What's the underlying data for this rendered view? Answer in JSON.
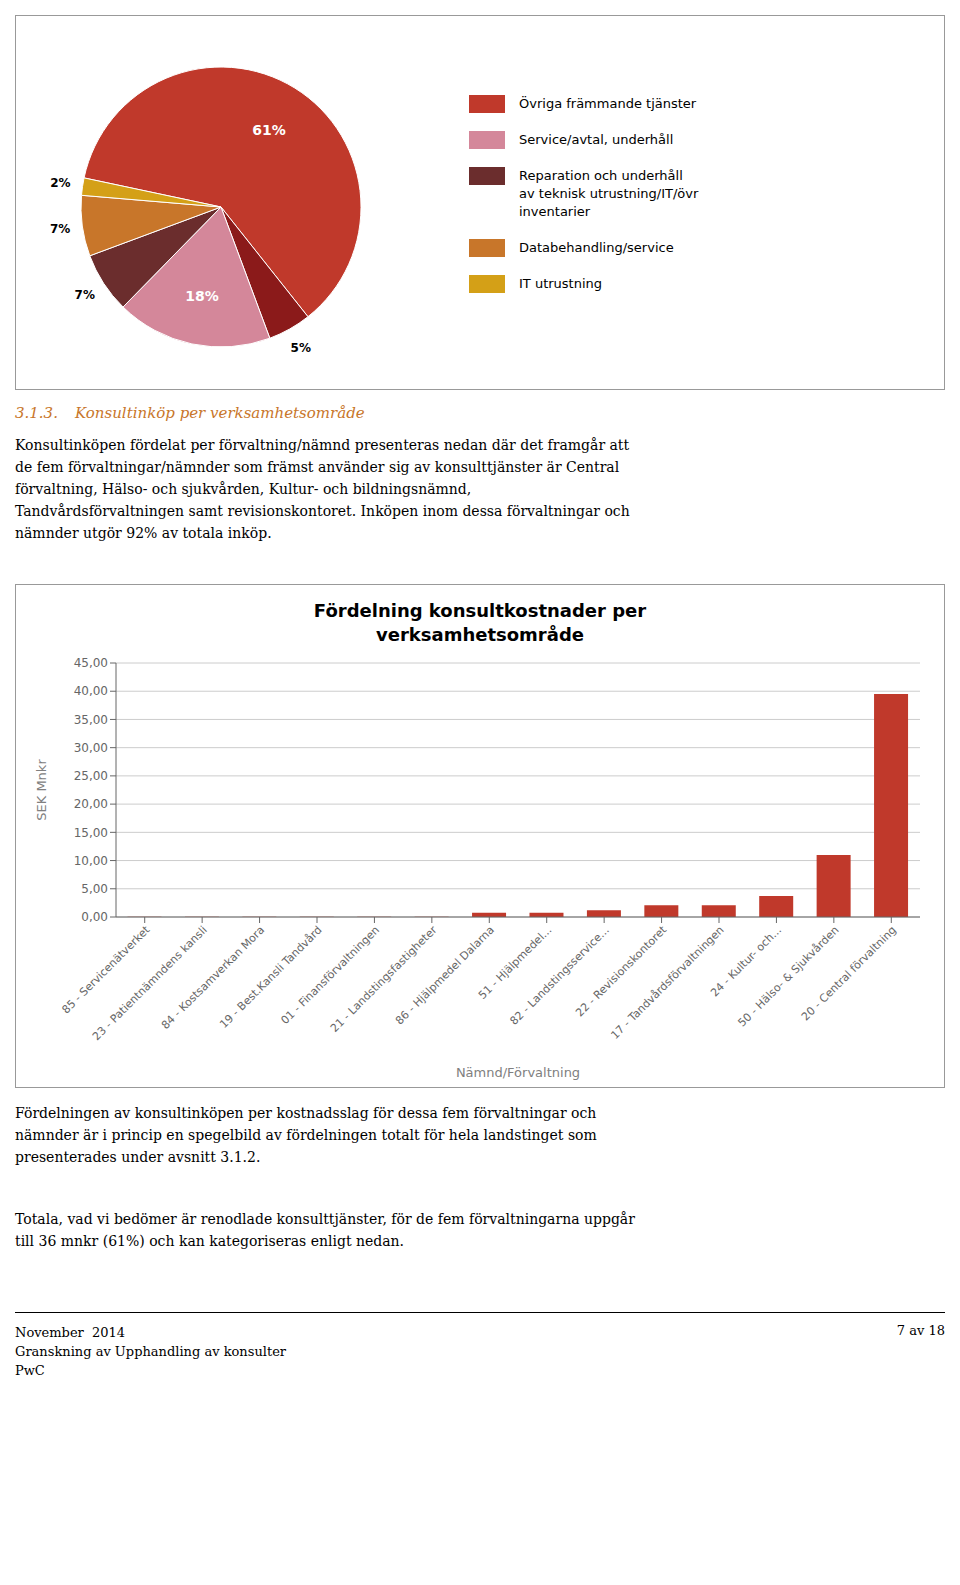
{
  "chart_data": [
    {
      "type": "pie",
      "values": [
        61,
        5,
        18,
        7,
        7,
        2
      ],
      "value_labels": [
        "61%",
        "5%",
        "18%",
        "7%",
        "7%",
        "2%"
      ],
      "colors": [
        "#C0392B",
        "#8B1A1A",
        "#D4879A",
        "#6B2D2D",
        "#C8762A",
        "#D4A017"
      ],
      "categories": [
        "Övriga främmande tjänster",
        null,
        "Service/avtal, underhåll",
        "Reparation och underhåll\nav teknisk utrustning/IT/övr\ninventarier",
        "Databehandling/service",
        "IT utrustning"
      ],
      "data_labels": true,
      "legend": "right",
      "annotations": [
        "3.1.3.",
        "Konsultinköp per verksamhetsområde",
        "Konsultinköpen fördelat per förvaltning/nämnd presenteras nedan där det framgår att\nde fem förvaltningar/nämnder som främst använder sig av konsulttjänster är Central\nförvaltning, Hälso- och sjukvården, Kultur- och bildningsnämnd,\nTandvårdsförvaltningen samt revisionskontoret. Inköpen inom dessa förvaltningar och\nnämnder utgör 92% av totala inköp."
      ]
    },
    {
      "type": "bar",
      "title": "Fördelning konsultkostnader per\nverksamhetsområde",
      "ylabel": "SEK Mnkr",
      "xlabel": "Nämnd/Förvaltning",
      "categories": [
        "85 - Servicenätverket",
        "23 - Patientnämndens kansli",
        "84 - Kostsamverkan Mora",
        "19 - Best.Kansli Tandvård",
        "01 - Finansförvaltningen",
        "21 - Landstingsfastigheter",
        "86 - Hjälpmedel Dalarna",
        "51 - Hjälpmedel...",
        "82 - Landstingsservice...",
        "22 - Revisionskontoret",
        "17 - Tandvårdsförvaltningen",
        "24 - Kultur- och...",
        "50 - Hälso- & Sjukvården",
        "20 - Central förvaltning"
      ],
      "values": [
        0.05,
        0.05,
        0.05,
        0.05,
        0.05,
        0.05,
        0.75,
        0.75,
        1.2,
        2.1,
        2.1,
        3.7,
        11.0,
        39.5
      ],
      "color": "#C0392B",
      "ylim": [
        0,
        45
      ],
      "yticks": [
        {
          "value": 0,
          "label": "0,00"
        },
        {
          "value": 5,
          "label": "5,00"
        },
        {
          "value": 10,
          "label": "10,00"
        },
        {
          "value": 15,
          "label": "15,00"
        },
        {
          "value": 20,
          "label": "20,00"
        },
        {
          "value": 25,
          "label": "25,00"
        },
        {
          "value": 30,
          "label": "30,00"
        },
        {
          "value": 35,
          "label": "35,00"
        },
        {
          "value": 40,
          "label": "40,00"
        },
        {
          "value": 45,
          "label": "45,00"
        }
      ],
      "grid": true,
      "annotations": [
        "Fördelningen av konsultinköpen per kostnadsslag för dessa fem förvaltningar och\nnämnder är i princip en spegelbild av fördelningen totalt för hela landstinget som\npresenterades under avsnitt 3.1.2.",
        "Totala, vad vi bedömer är renodlade konsulttjänster, för de fem förvaltningarna uppgår\ntill 36 mnkr (61%) och kan kategoriseras enligt nedan.",
        "November  2014\nGranskning av Upphandling av konsulter\nPwC",
        "7 av 18"
      ]
    }
  ]
}
